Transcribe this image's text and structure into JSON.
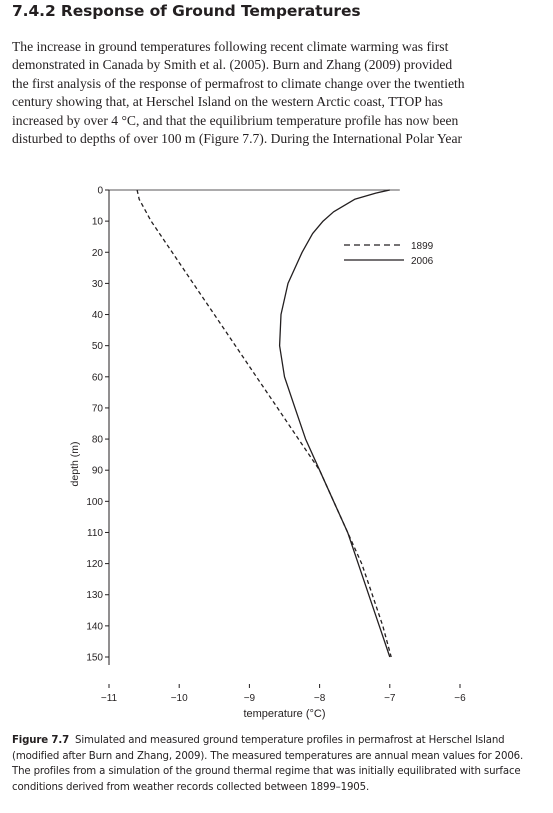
{
  "section": {
    "heading": "7.4.2 Response of Ground Temperatures",
    "paragraph_lines": [
      "The increase in ground temperatures following recent climate warming was first",
      "demonstrated in Canada by Smith et al. (2005). Burn and Zhang (2009) provided",
      "the first analysis of the response of permafrost to climate change over the twentieth",
      "century showing that, at Herschel Island on the western Arctic coast, TTOP has",
      "increased by over 4 °C, and that the equilibrium temperature profile has now been",
      "disturbed to depths of over 100 m (Figure 7.7). During the International Polar Year"
    ]
  },
  "figure": {
    "label": "Figure 7.7",
    "caption_lines": [
      "Simulated and measured ground temperature profiles in permafrost at Herschel Island",
      "(modified after Burn and Zhang, 2009). The measured temperatures are annual mean values for 2006.",
      "The profiles from a simulation of the ground thermal regime that was initially equilibrated with surface",
      "conditions derived from weather records collected between 1899–1905."
    ]
  },
  "chart_data": {
    "type": "line",
    "xlabel": "temperature (°C)",
    "ylabel": "depth (m)",
    "xlim": [
      -11,
      -6
    ],
    "ylim": [
      0,
      150
    ],
    "y_inverted": true,
    "x_ticks": [
      -11,
      -10,
      -9,
      -8,
      -7,
      -6
    ],
    "x_tick_labels": [
      "−11",
      "−10",
      "−9",
      "−8",
      "−7",
      "−6"
    ],
    "y_ticks": [
      0,
      10,
      20,
      30,
      40,
      50,
      60,
      70,
      80,
      90,
      100,
      110,
      120,
      130,
      140,
      150
    ],
    "y_tick_labels": [
      "0",
      "10",
      "20",
      "30",
      "40",
      "50",
      "60",
      "70",
      "80",
      "90",
      "100",
      "110",
      "120",
      "130",
      "140",
      "150"
    ],
    "legend_position": "top-right",
    "grid": false,
    "series": [
      {
        "name": "1899",
        "style": "dashed",
        "color": "#231f20",
        "points": [
          [
            -10.6,
            0
          ],
          [
            -10.57,
            3
          ],
          [
            -10.4,
            10
          ],
          [
            -10.1,
            20
          ],
          [
            -9.8,
            30
          ],
          [
            -9.5,
            40
          ],
          [
            -9.2,
            50
          ],
          [
            -8.9,
            60
          ],
          [
            -8.6,
            70
          ],
          [
            -8.3,
            80
          ],
          [
            -8.0,
            90
          ],
          [
            -7.8,
            100
          ],
          [
            -7.6,
            110
          ],
          [
            -7.4,
            120
          ],
          [
            -7.25,
            130
          ],
          [
            -7.1,
            140
          ],
          [
            -6.98,
            150
          ]
        ]
      },
      {
        "name": "2006",
        "style": "solid",
        "color": "#231f20",
        "points": [
          [
            -7.0,
            0
          ],
          [
            -7.2,
            1
          ],
          [
            -7.5,
            3
          ],
          [
            -7.8,
            7
          ],
          [
            -7.95,
            10
          ],
          [
            -8.1,
            14
          ],
          [
            -8.25,
            20
          ],
          [
            -8.45,
            30
          ],
          [
            -8.55,
            40
          ],
          [
            -8.57,
            50
          ],
          [
            -8.5,
            60
          ],
          [
            -8.35,
            70
          ],
          [
            -8.2,
            80
          ],
          [
            -8.0,
            90
          ],
          [
            -7.8,
            100
          ],
          [
            -7.6,
            110
          ],
          [
            -7.45,
            120
          ],
          [
            -7.3,
            130
          ],
          [
            -7.15,
            140
          ],
          [
            -7.0,
            150
          ]
        ]
      }
    ]
  }
}
